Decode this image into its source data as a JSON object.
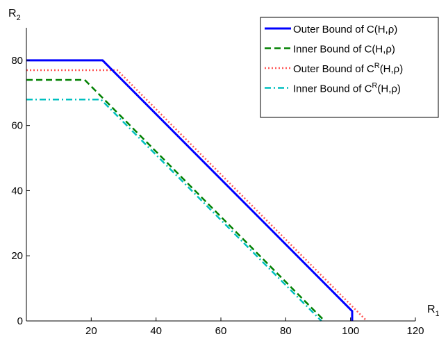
{
  "chart_data": {
    "type": "line",
    "xlabel": "R1",
    "ylabel": "R2",
    "xlim": [
      0,
      120
    ],
    "ylim": [
      0,
      90
    ],
    "xticks": [
      20,
      40,
      60,
      80,
      100,
      120
    ],
    "yticks": [
      0,
      20,
      40,
      60,
      80
    ],
    "grid": false,
    "legend_position": "top-right",
    "series": [
      {
        "name": "Outer Bound of C(H,ρ)",
        "label_html": "Outer Bound of C(H,ρ)",
        "color": "#0000ff",
        "style": "solid",
        "x": [
          0,
          23.5,
          100.5,
          100.5
        ],
        "y": [
          80,
          80,
          3,
          0
        ]
      },
      {
        "name": "Inner Bound of C(H,ρ)",
        "label_html": "Inner Bound of C(H,ρ)",
        "color": "#008000",
        "style": "dashed",
        "x": [
          0,
          18,
          92,
          92
        ],
        "y": [
          74,
          74,
          0,
          0
        ]
      },
      {
        "name": "Outer Bound of C^R(H,ρ)",
        "label_html": "Outer Bound of C<tspan baseline-shift=\"super\" font-size=\"11\">R</tspan>(H,ρ)",
        "color": "#ff5555",
        "style": "dotted",
        "x": [
          0,
          28,
          105
        ],
        "y": [
          77,
          77,
          0
        ]
      },
      {
        "name": "Inner Bound of C^R(H,ρ)",
        "label_html": "Inner Bound of C<tspan baseline-shift=\"super\" font-size=\"11\">R</tspan>(H,ρ)",
        "color": "#00bfbf",
        "style": "dashdot",
        "x": [
          0,
          23,
          91
        ],
        "y": [
          68,
          68,
          0
        ]
      }
    ]
  }
}
